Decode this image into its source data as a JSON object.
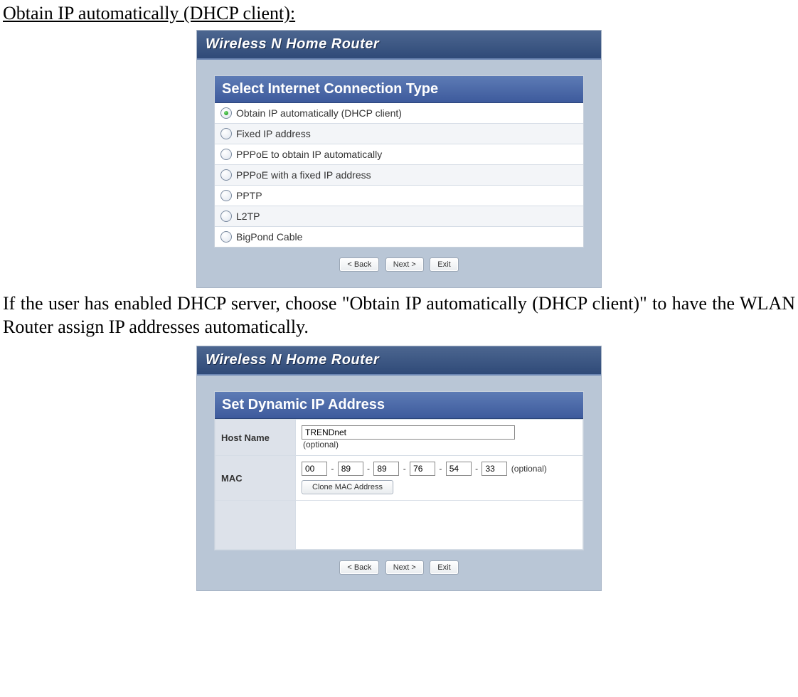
{
  "doc": {
    "heading": "Obtain IP automatically (DHCP client):",
    "paragraph": "If the user has enabled DHCP server, choose \"Obtain IP automatically (DHCP client)\" to have the WLAN Router assign IP addresses automatically."
  },
  "router_title": "Wireless N Home Router",
  "panel1": {
    "section_title": "Select Internet Connection Type",
    "options": [
      {
        "label": "Obtain IP automatically (DHCP client)",
        "selected": true
      },
      {
        "label": "Fixed IP address",
        "selected": false
      },
      {
        "label": "PPPoE to obtain IP automatically",
        "selected": false
      },
      {
        "label": "PPPoE with a fixed IP address",
        "selected": false
      },
      {
        "label": "PPTP",
        "selected": false
      },
      {
        "label": "L2TP",
        "selected": false
      },
      {
        "label": "BigPond Cable",
        "selected": false
      }
    ]
  },
  "panel2": {
    "section_title": "Set Dynamic IP Address",
    "host_label": "Host Name",
    "host_value": "TRENDnet",
    "host_note": "(optional)",
    "mac_label": "MAC",
    "mac_octets": [
      "00",
      "89",
      "89",
      "76",
      "54",
      "33"
    ],
    "mac_note": "(optional)",
    "clone_label": "Clone MAC Address"
  },
  "buttons": {
    "back": "< Back",
    "next": "Next >",
    "exit": "Exit"
  }
}
